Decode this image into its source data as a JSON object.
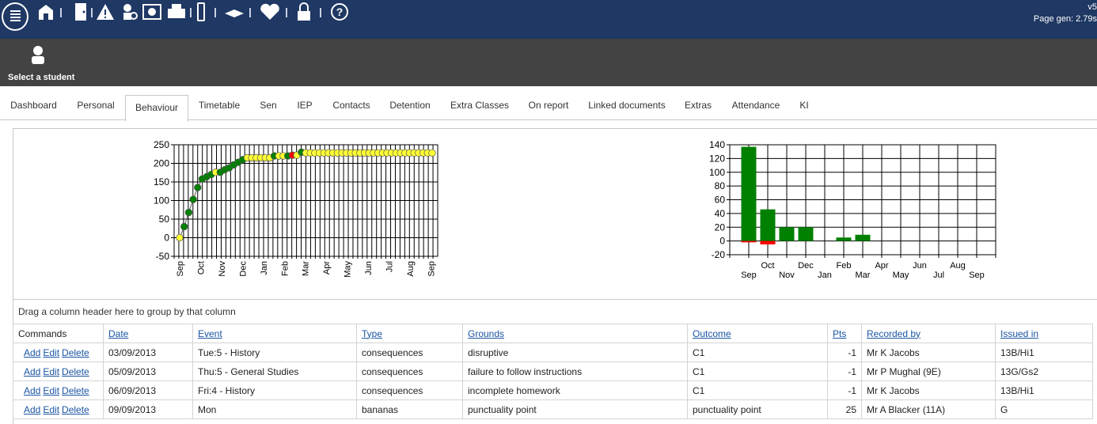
{
  "header": {
    "version": "v5",
    "page_gen": "Page gen: 2.79s",
    "icons": [
      "menu-icon",
      "school-icon",
      "door-icon",
      "warning-icon",
      "search-student-icon",
      "info-icon",
      "print-icon",
      "mobile-icon",
      "book-icon",
      "heart-icon",
      "lock-icon",
      "help-icon"
    ]
  },
  "student": {
    "label": "Select a student"
  },
  "tabs": [
    "Dashboard",
    "Personal",
    "Behaviour",
    "Timetable",
    "Sen",
    "IEP",
    "Contacts",
    "Detention",
    "Extra Classes",
    "On report",
    "Linked documents",
    "Extras",
    "Attendance",
    "KI"
  ],
  "active_tab": "Behaviour",
  "chart_data": [
    {
      "type": "line",
      "y_ticks": [
        250,
        200,
        150,
        100,
        50,
        0,
        -50
      ],
      "x_labels": [
        "Sep",
        "Oct",
        "Nov",
        "Dec",
        "Jan",
        "Feb",
        "Mar",
        "Apr",
        "May",
        "Jun",
        "Jul",
        "Aug",
        "Sep"
      ],
      "ylim": [
        -50,
        250
      ],
      "values": [
        0,
        30,
        68,
        103,
        135,
        158,
        164,
        170,
        176,
        176,
        183,
        188,
        196,
        203,
        210,
        215,
        215,
        215,
        215,
        215,
        215,
        220,
        220,
        220,
        220,
        222,
        222,
        230,
        228,
        228,
        228,
        228,
        228,
        228,
        228,
        228,
        228,
        228,
        228,
        228,
        228,
        228,
        228,
        228,
        228,
        228,
        228,
        228,
        228,
        228,
        228,
        228,
        228,
        228,
        228,
        228,
        228
      ],
      "point_colors": [
        "#ffff33",
        "#008000",
        "#008000",
        "#008000",
        "#008000",
        "#008000",
        "#008000",
        "#008000",
        "#ffff33",
        "#008000",
        "#008000",
        "#008000",
        "#008000",
        "#008000",
        "#008000",
        "#ffff33",
        "#ffff33",
        "#ffff33",
        "#ffff33",
        "#ffff33",
        "#ffff33",
        "#008000",
        "#ffff33",
        "#ffff33",
        "#008000",
        "#ff0000",
        "#ffff33",
        "#008000",
        "#ffff33",
        "#ffff33",
        "#ffff33",
        "#ffff33",
        "#ffff33",
        "#ffff33",
        "#ffff33",
        "#ffff33",
        "#ffff33",
        "#ffff33",
        "#ffff33",
        "#ffff33",
        "#ffff33",
        "#ffff33",
        "#ffff33",
        "#ffff33",
        "#ffff33",
        "#ffff33",
        "#ffff33",
        "#ffff33",
        "#ffff33",
        "#ffff33",
        "#ffff33",
        "#ffff33",
        "#ffff33",
        "#ffff33",
        "#ffff33",
        "#ffff33",
        "#ffff33"
      ],
      "grid": true
    },
    {
      "type": "bar",
      "y_ticks": [
        140,
        120,
        100,
        80,
        60,
        40,
        20,
        0,
        -20
      ],
      "ylim": [
        -20,
        140
      ],
      "categories": [
        "Sep",
        "Oct",
        "Nov",
        "Dec",
        "Jan",
        "Feb",
        "Mar",
        "Apr",
        "May",
        "Jun",
        "Jul",
        "Aug",
        "Sep"
      ],
      "series": [
        {
          "color": "#008000",
          "values": [
            137,
            46,
            20,
            20,
            0,
            5,
            9,
            0,
            0,
            0,
            0,
            0,
            0
          ]
        },
        {
          "color": "#ff0000",
          "values": [
            -2,
            -5,
            0,
            0,
            0,
            0,
            0,
            0,
            0,
            0,
            0,
            0,
            0
          ]
        }
      ],
      "grid": true
    }
  ],
  "grid": {
    "group_hint": "Drag a column header here to group by that column",
    "commands_header": "Commands",
    "columns": [
      "Date",
      "Event",
      "Type",
      "Grounds",
      "Outcome",
      "Pts",
      "Recorded by",
      "Issued in"
    ],
    "command_labels": [
      "Add",
      "Edit",
      "Delete"
    ],
    "rows": [
      [
        "03/09/2013",
        "Tue:5 - History",
        "consequences",
        "disruptive",
        "C1",
        "-1",
        "Mr K Jacobs",
        "13B/Hi1"
      ],
      [
        "05/09/2013",
        "Thu:5 - General Studies",
        "consequences",
        "failure to follow instructions",
        "C1",
        "-1",
        "Mr P Mughal (9E)",
        "13G/Gs2"
      ],
      [
        "06/09/2013",
        "Fri:4 - History",
        "consequences",
        "incomplete homework",
        "C1",
        "-1",
        "Mr K Jacobs",
        "13B/Hi1"
      ],
      [
        "09/09/2013",
        "Mon",
        "bananas",
        "punctuality point",
        "punctuality point",
        "25",
        "Mr A Blacker (11A)",
        "G"
      ]
    ]
  }
}
